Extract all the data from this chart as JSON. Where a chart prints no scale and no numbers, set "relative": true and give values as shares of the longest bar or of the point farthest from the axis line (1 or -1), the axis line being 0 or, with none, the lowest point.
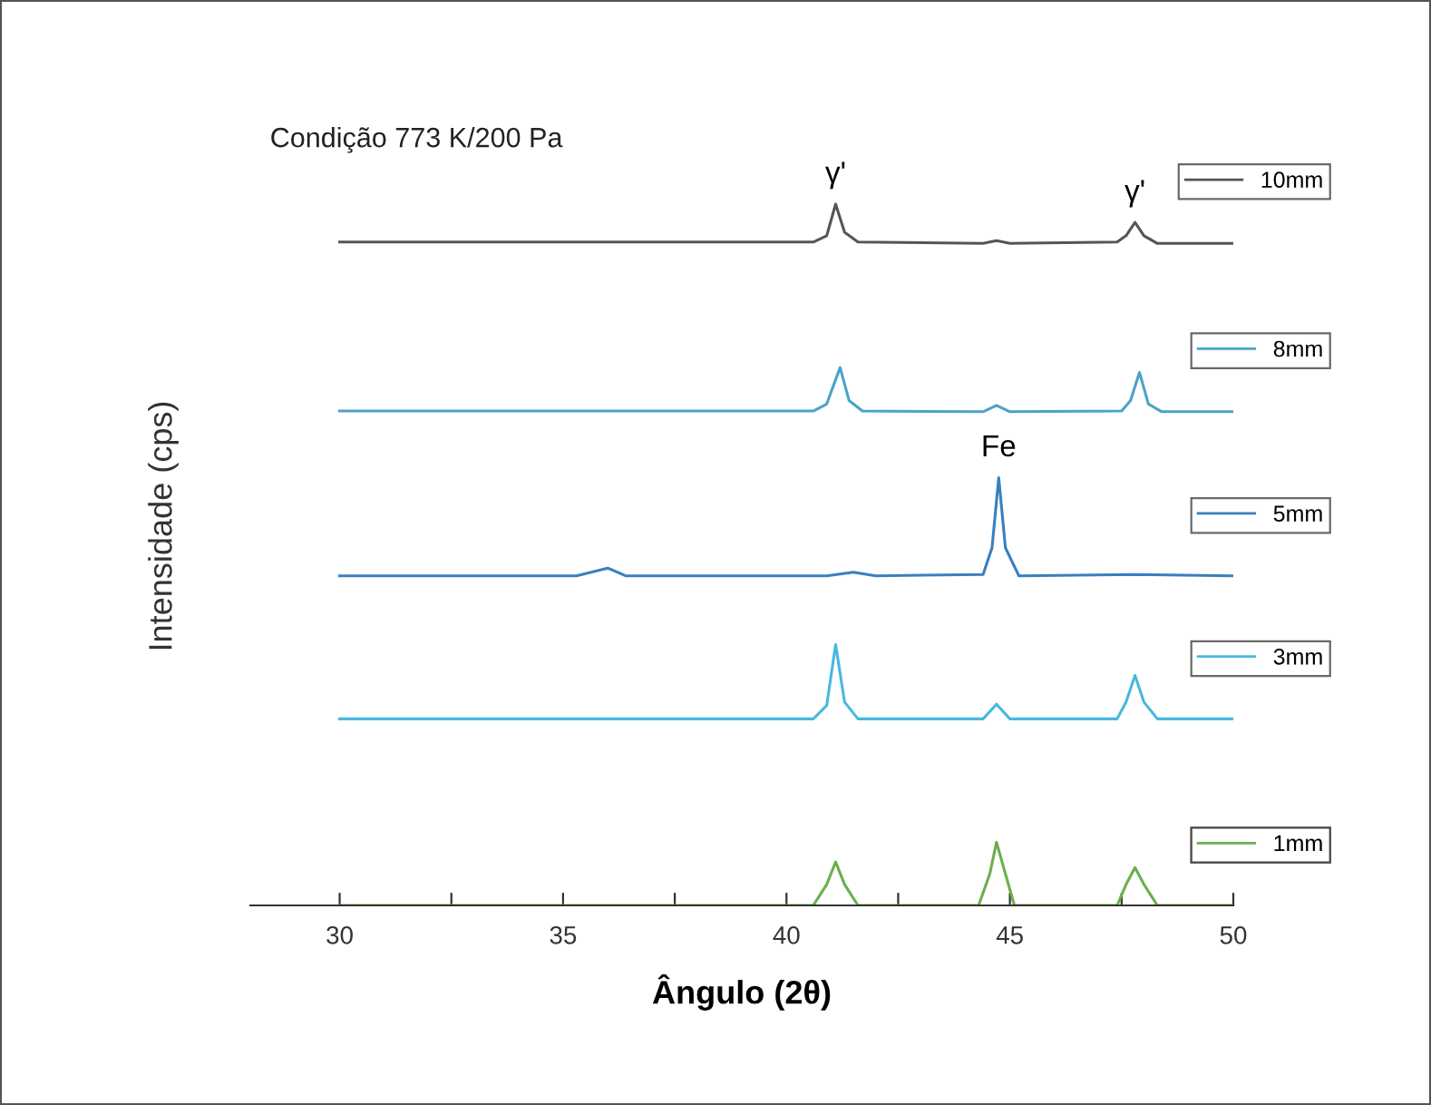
{
  "chart_data": {
    "type": "line",
    "relative": true,
    "title": "Condição 773 K/200 Pa",
    "xlabel": "Ângulo (2θ)",
    "ylabel": "Intensidade (cps)",
    "xlim": [
      28,
      50
    ],
    "xticks": [
      30,
      {
        "value": 32.5,
        "label": null
      },
      35,
      {
        "value": 37.5,
        "label": null
      },
      40,
      {
        "value": 42.5,
        "label": null
      },
      45,
      {
        "value": 47.5,
        "label": null
      },
      50
    ],
    "grid": false,
    "legend": "right",
    "marker": "none",
    "line_style": "solid",
    "annotations": [
      {
        "text": "γ'",
        "x": 41.1,
        "y": 1.0
      },
      {
        "text": "γ'",
        "x": 47.8,
        "y": 0.974
      },
      {
        "text": "Fe",
        "x": 44.75,
        "y": 0.61
      }
    ],
    "series": [
      {
        "name": "10mm",
        "color": "#555555",
        "x": [
          30,
          35,
          40.6,
          40.9,
          41.1,
          41.3,
          41.6,
          44.4,
          44.7,
          45.0,
          47.4,
          47.6,
          47.8,
          48.0,
          48.3,
          50
        ],
        "values": [
          0.946,
          0.946,
          0.946,
          0.955,
          1.0,
          0.96,
          0.946,
          0.944,
          0.948,
          0.944,
          0.946,
          0.955,
          0.974,
          0.955,
          0.944,
          0.944
        ]
      },
      {
        "name": "8mm",
        "color": "#4aa3c8",
        "x": [
          30,
          35,
          40.6,
          40.9,
          41.2,
          41.4,
          41.7,
          44.4,
          44.7,
          45.0,
          47.5,
          47.7,
          47.9,
          48.1,
          48.4,
          50
        ],
        "values": [
          0.705,
          0.705,
          0.705,
          0.715,
          0.767,
          0.72,
          0.705,
          0.704,
          0.713,
          0.704,
          0.705,
          0.72,
          0.76,
          0.715,
          0.704,
          0.704
        ]
      },
      {
        "name": "5mm",
        "color": "#3a7fc0",
        "x": [
          30,
          35.3,
          36.0,
          36.4,
          40.9,
          41.5,
          42.0,
          44.4,
          44.6,
          44.75,
          44.9,
          45.2,
          47.8,
          50
        ],
        "values": [
          0.47,
          0.47,
          0.481,
          0.47,
          0.47,
          0.475,
          0.47,
          0.472,
          0.51,
          0.61,
          0.51,
          0.47,
          0.472,
          0.47
        ]
      },
      {
        "name": "3mm",
        "color": "#47b8e0",
        "x": [
          30,
          35,
          40.6,
          40.9,
          41.1,
          41.3,
          41.6,
          44.4,
          44.7,
          45.0,
          47.4,
          47.6,
          47.8,
          48.0,
          48.3,
          50
        ],
        "values": [
          0.266,
          0.266,
          0.266,
          0.285,
          0.372,
          0.29,
          0.266,
          0.266,
          0.287,
          0.266,
          0.266,
          0.29,
          0.328,
          0.29,
          0.266,
          0.266
        ]
      },
      {
        "name": "1mm",
        "color": "#6ab04c",
        "x": [
          30,
          35,
          40.6,
          40.9,
          41.1,
          41.3,
          41.6,
          44.3,
          44.55,
          44.7,
          44.9,
          45.1,
          47.4,
          47.6,
          47.8,
          48.0,
          48.3,
          50
        ],
        "values": [
          0,
          0,
          0,
          0.03,
          0.062,
          0.03,
          0,
          0,
          0.045,
          0.09,
          0.045,
          0,
          0,
          0.03,
          0.054,
          0.03,
          0,
          0
        ]
      }
    ]
  }
}
